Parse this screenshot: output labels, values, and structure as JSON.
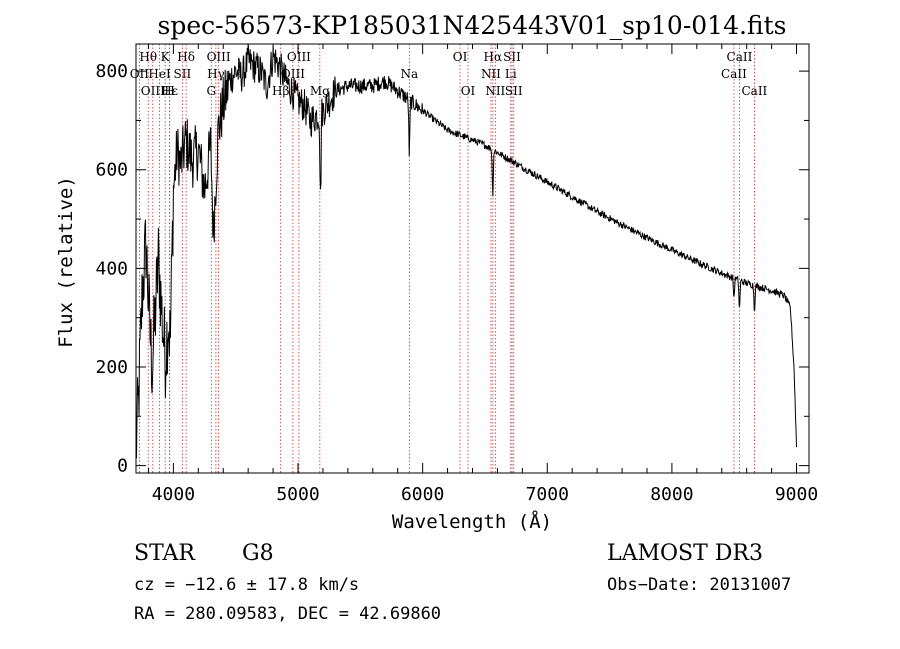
{
  "chart_data": {
    "type": "line",
    "title": "spec-56573-KP185031N425443V01_sp10-014.fits",
    "xlabel": "Wavelength (Å)",
    "ylabel": "Flux (relative)",
    "xlim": [
      3700,
      9100
    ],
    "ylim": [
      -15,
      855
    ],
    "xticks": [
      4000,
      5000,
      6000,
      7000,
      8000,
      9000
    ],
    "yticks": [
      0,
      200,
      400,
      600,
      800
    ],
    "spectral_lines": [
      {
        "wave": 3727,
        "label": "OII",
        "row": 1
      },
      {
        "wave": 3798,
        "label": "Hθ",
        "row": 0
      },
      {
        "wave": 3835,
        "label": "OIII",
        "row": 2
      },
      {
        "wave": 3889,
        "label": "HeI",
        "row": 1
      },
      {
        "wave": 3934,
        "label": "K",
        "row": 0
      },
      {
        "wave": 3970,
        "label": "Hε",
        "row": 2
      },
      {
        "wave": 3970,
        "label": "H",
        "row": 2
      },
      {
        "wave": 4072,
        "label": "SII",
        "row": 1
      },
      {
        "wave": 4102,
        "label": "Hδ",
        "row": 0
      },
      {
        "wave": 4304,
        "label": "G",
        "row": 2
      },
      {
        "wave": 4341,
        "label": "Hγ",
        "row": 1
      },
      {
        "wave": 4363,
        "label": "OIII",
        "row": 0
      },
      {
        "wave": 4861,
        "label": "Hβ",
        "row": 2
      },
      {
        "wave": 4959,
        "label": "OIII",
        "row": 1
      },
      {
        "wave": 5007,
        "label": "OIII",
        "row": 0
      },
      {
        "wave": 5175,
        "label": "Mg",
        "row": 2
      },
      {
        "wave": 5893,
        "label": "Na",
        "row": 1
      },
      {
        "wave": 6300,
        "label": "OI",
        "row": 0
      },
      {
        "wave": 6364,
        "label": "OI",
        "row": 2
      },
      {
        "wave": 6548,
        "label": "NII",
        "row": 1
      },
      {
        "wave": 6563,
        "label": "Hα",
        "row": 0
      },
      {
        "wave": 6583,
        "label": "NII",
        "row": 2
      },
      {
        "wave": 6707,
        "label": "Li",
        "row": 1
      },
      {
        "wave": 6717,
        "label": "SII",
        "row": 0
      },
      {
        "wave": 6731,
        "label": "SII",
        "row": 2
      },
      {
        "wave": 8498,
        "label": "CaII",
        "row": 1
      },
      {
        "wave": 8542,
        "label": "CaII",
        "row": 0
      },
      {
        "wave": 8662,
        "label": "CaII",
        "row": 2
      }
    ],
    "flux_nodes": [
      [
        3700,
        30
      ],
      [
        3720,
        130
      ],
      [
        3750,
        350
      ],
      [
        3780,
        450
      ],
      [
        3810,
        280
      ],
      [
        3830,
        200
      ],
      [
        3860,
        330
      ],
      [
        3880,
        420
      ],
      [
        3910,
        300
      ],
      [
        3935,
        220
      ],
      [
        3960,
        300
      ],
      [
        3975,
        250
      ],
      [
        4000,
        560
      ],
      [
        4030,
        640
      ],
      [
        4060,
        610
      ],
      [
        4100,
        660
      ],
      [
        4150,
        620
      ],
      [
        4200,
        640
      ],
      [
        4250,
        560
      ],
      [
        4300,
        650
      ],
      [
        4320,
        470
      ],
      [
        4360,
        680
      ],
      [
        4400,
        730
      ],
      [
        4450,
        780
      ],
      [
        4500,
        800
      ],
      [
        4550,
        790
      ],
      [
        4600,
        820
      ],
      [
        4650,
        810
      ],
      [
        4700,
        800
      ],
      [
        4750,
        770
      ],
      [
        4800,
        830
      ],
      [
        4850,
        810
      ],
      [
        4900,
        780
      ],
      [
        4950,
        760
      ],
      [
        5000,
        740
      ],
      [
        5050,
        730
      ],
      [
        5100,
        700
      ],
      [
        5150,
        710
      ],
      [
        5200,
        720
      ],
      [
        5300,
        760
      ],
      [
        5400,
        770
      ],
      [
        5500,
        770
      ],
      [
        5600,
        770
      ],
      [
        5700,
        780
      ],
      [
        5800,
        760
      ],
      [
        5900,
        740
      ],
      [
        6000,
        720
      ],
      [
        6100,
        700
      ],
      [
        6200,
        680
      ],
      [
        6300,
        670
      ],
      [
        6400,
        660
      ],
      [
        6500,
        650
      ],
      [
        6600,
        635
      ],
      [
        6700,
        620
      ],
      [
        6800,
        605
      ],
      [
        6900,
        590
      ],
      [
        7000,
        575
      ],
      [
        7200,
        545
      ],
      [
        7400,
        515
      ],
      [
        7600,
        488
      ],
      [
        7800,
        462
      ],
      [
        8000,
        437
      ],
      [
        8200,
        413
      ],
      [
        8400,
        390
      ],
      [
        8600,
        370
      ],
      [
        8800,
        355
      ],
      [
        8900,
        345
      ],
      [
        8950,
        320
      ],
      [
        8980,
        200
      ],
      [
        9000,
        40
      ]
    ],
    "absorption_dips": [
      {
        "wave": 5180,
        "depth": 180
      },
      {
        "wave": 5893,
        "depth": 110
      },
      {
        "wave": 6563,
        "depth": 90
      },
      {
        "wave": 8498,
        "depth": 40
      },
      {
        "wave": 8542,
        "depth": 60
      },
      {
        "wave": 8662,
        "depth": 50
      }
    ]
  },
  "info": {
    "object_class": "STAR",
    "subclass": "G8",
    "survey": "LAMOST DR3",
    "cz_text": "cz = −12.6 ± 17.8 km/s",
    "obs_date_text": "Obs−Date: 20131007",
    "coords_text": "RA = 280.09583, DEC =  42.69860"
  }
}
